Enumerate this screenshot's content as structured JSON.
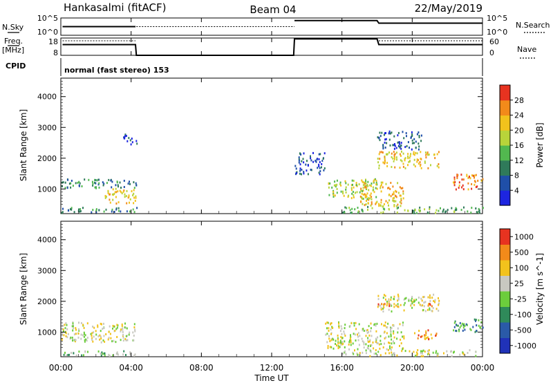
{
  "header": {
    "station": "Hankasalmi (fitACF)",
    "beam": "Beam 04",
    "date": "22/May/2019"
  },
  "noise_panel": {
    "left_label": "N.Sky",
    "right_label": "N.Search",
    "left_ticks": [
      "10^5",
      "10^0"
    ],
    "right_ticks": [
      "10^5",
      "10^0"
    ]
  },
  "freq_panel": {
    "left_label_1": "Freq.",
    "left_label_2": "[MHz]",
    "right_label": "Nave",
    "left_ticks": [
      "18",
      "8"
    ],
    "right_ticks": [
      "60",
      "0"
    ]
  },
  "cpid": {
    "label": "CPID",
    "text": "normal (fast stereo) 153"
  },
  "power_panel": {
    "ylabel": "Slant Range [km]",
    "yticks": [
      "4000",
      "3000",
      "2000",
      "1000"
    ],
    "colorbar_label": "Power [dB]",
    "colorbar_ticks": [
      "28",
      "24",
      "20",
      "16",
      "12",
      "8",
      "4"
    ],
    "colors": [
      "#1d25e0",
      "#1f4fa8",
      "#2f7a5a",
      "#52b84f",
      "#b8d43a",
      "#f2c21c",
      "#f28a1a",
      "#e73320"
    ]
  },
  "velocity_panel": {
    "ylabel": "Slant Range [km]",
    "yticks": [
      "4000",
      "3000",
      "2000",
      "1000"
    ],
    "colorbar_label": "Velocity [m s^-1]",
    "colorbar_ticks": [
      "1000",
      "500",
      "100",
      "25",
      "-25",
      "-100",
      "-500",
      "-1000"
    ],
    "colors": [
      "#2032b8",
      "#2a5aa8",
      "#2f8a5a",
      "#6ccd3c",
      "#c8c8c0",
      "#f2c21c",
      "#f28a1a",
      "#e73320"
    ]
  },
  "xaxis": {
    "label": "Time UT",
    "ticks": [
      "00:00",
      "04:00",
      "08:00",
      "12:00",
      "16:00",
      "20:00",
      "00:00"
    ]
  },
  "chart_data": {
    "type": "heatmap",
    "x_unit": "hours UT",
    "xlim": [
      0,
      24
    ],
    "ylim": [
      200,
      4600
    ],
    "data_gap": [
      4.3,
      13.3
    ],
    "power_clusters": [
      {
        "t0": 0.0,
        "t1": 4.3,
        "r0": 1050,
        "r1": 1350,
        "level": 2
      },
      {
        "t0": 2.5,
        "t1": 4.3,
        "r0": 550,
        "r1": 1050,
        "level": 5
      },
      {
        "t0": 3.5,
        "t1": 4.3,
        "r0": 2450,
        "r1": 2800,
        "level": 1
      },
      {
        "t0": 0.0,
        "t1": 4.3,
        "r0": 250,
        "r1": 420,
        "level": 2
      },
      {
        "t0": 15.2,
        "t1": 18.0,
        "r0": 700,
        "r1": 1350,
        "level": 4
      },
      {
        "t0": 17.0,
        "t1": 19.5,
        "r0": 450,
        "r1": 1250,
        "level": 5
      },
      {
        "t0": 18.0,
        "t1": 21.5,
        "r0": 1700,
        "r1": 2250,
        "level": 5
      },
      {
        "t0": 18.0,
        "t1": 20.5,
        "r0": 2300,
        "r1": 2900,
        "level": 1
      },
      {
        "t0": 22.3,
        "t1": 24.0,
        "r0": 1000,
        "r1": 1500,
        "level": 6
      },
      {
        "t0": 13.3,
        "t1": 15.0,
        "r0": 1500,
        "r1": 2200,
        "level": 1
      },
      {
        "t0": 16.0,
        "t1": 24.0,
        "r0": 250,
        "r1": 450,
        "level": 3
      }
    ],
    "velocity_clusters": [
      {
        "t0": 0.0,
        "t1": 4.3,
        "r0": 700,
        "r1": 1350,
        "level": 4
      },
      {
        "t0": 0.0,
        "t1": 4.3,
        "r0": 250,
        "r1": 420,
        "level": 3
      },
      {
        "t0": 15.0,
        "t1": 19.5,
        "r0": 450,
        "r1": 1350,
        "level": 4
      },
      {
        "t0": 18.0,
        "t1": 21.5,
        "r0": 1700,
        "r1": 2250,
        "level": 4
      },
      {
        "t0": 18.0,
        "t1": 21.5,
        "r0": 1850,
        "r1": 1950,
        "level": 6
      },
      {
        "t0": 22.3,
        "t1": 24.0,
        "r0": 1000,
        "r1": 1450,
        "level": 2
      },
      {
        "t0": 20.0,
        "t1": 21.5,
        "r0": 800,
        "r1": 1100,
        "level": 6
      },
      {
        "t0": 16.0,
        "t1": 24.0,
        "r0": 250,
        "r1": 450,
        "level": 4
      }
    ],
    "noise_sky": [
      {
        "t": 0.1,
        "v": 0.5
      },
      {
        "t": 4.25,
        "v": 0.5
      },
      {
        "t": 13.3,
        "v": 0.85
      },
      {
        "t": 18.0,
        "v": 0.85
      },
      {
        "t": 18.1,
        "v": 0.7
      },
      {
        "t": 24.0,
        "v": 0.7
      }
    ],
    "freq": [
      {
        "t": 0.1,
        "v": 0.62
      },
      {
        "t": 4.25,
        "v": 0.62
      },
      {
        "t": 4.3,
        "v": 0.0
      },
      {
        "t": 13.25,
        "v": 0.0
      },
      {
        "t": 13.3,
        "v": 0.95
      },
      {
        "t": 18.0,
        "v": 0.95
      },
      {
        "t": 18.1,
        "v": 0.62
      },
      {
        "t": 24.0,
        "v": 0.62
      }
    ]
  }
}
